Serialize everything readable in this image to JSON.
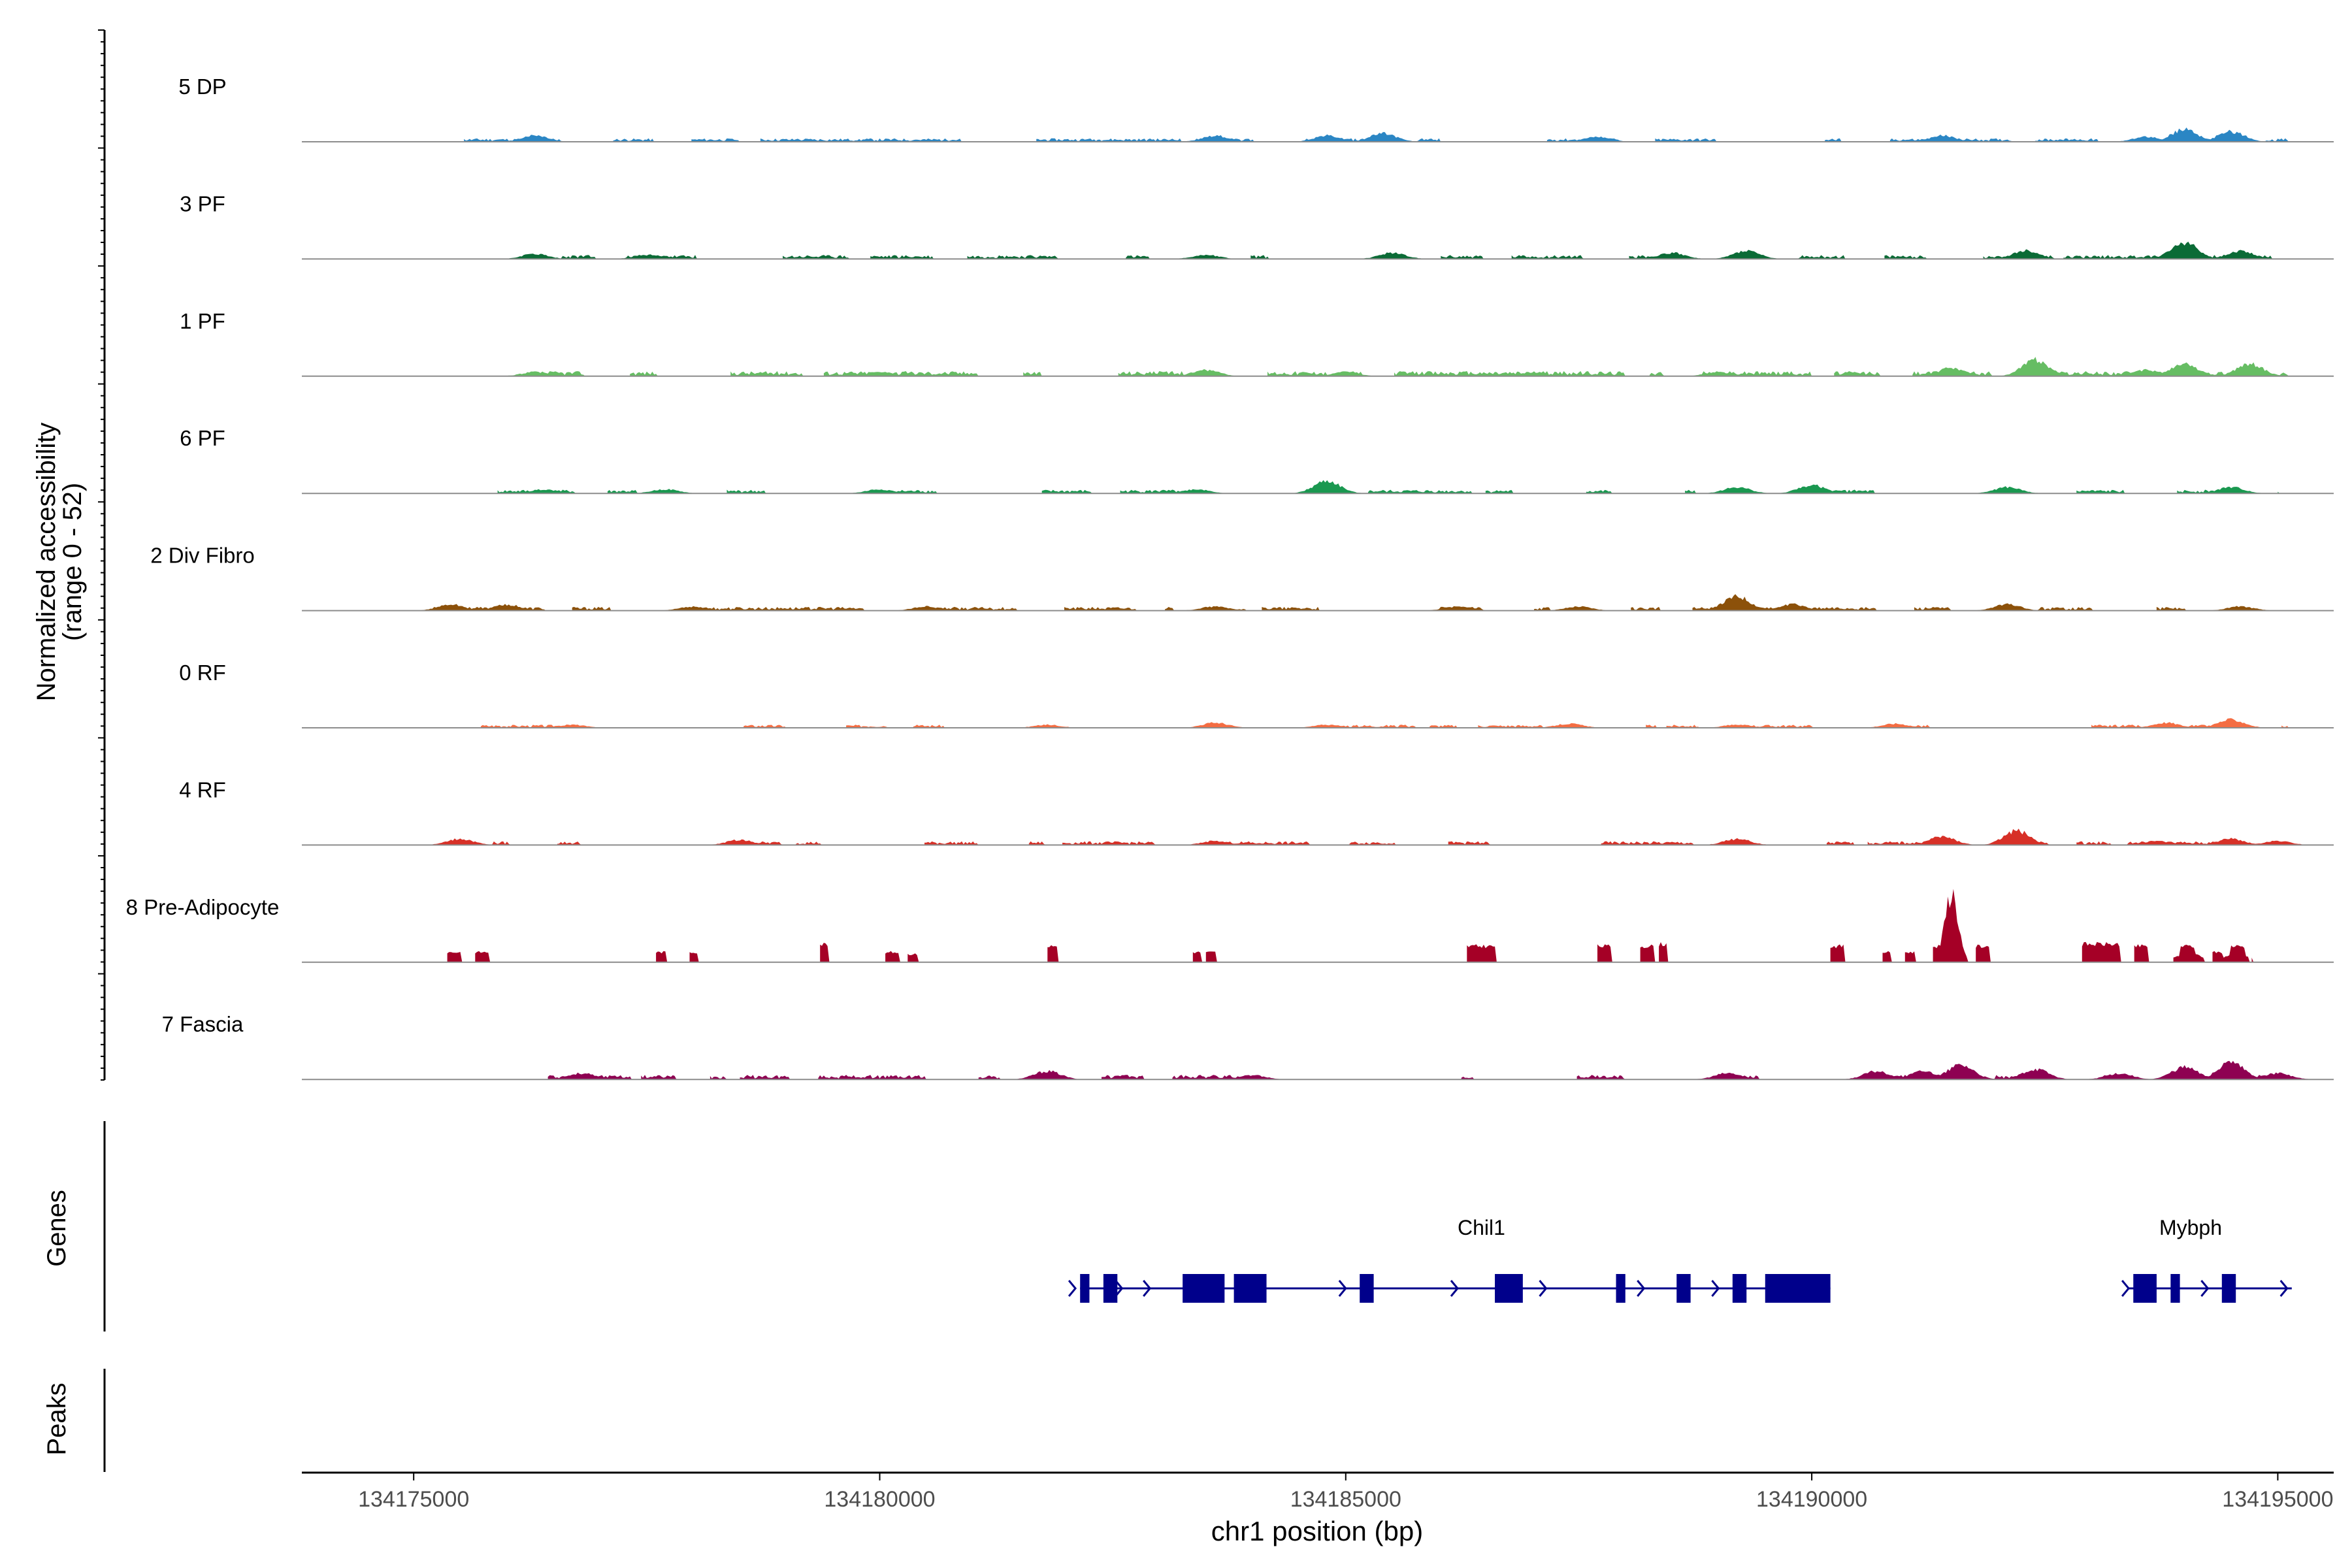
{
  "chart_data": {
    "type": "area",
    "region": "chr1",
    "x_label": "chr1 position (bp)",
    "xlim": [
      134173800,
      134195600
    ],
    "x_ticks": [
      134175000,
      134180000,
      134185000,
      134190000,
      134195000
    ],
    "x_tick_labels": [
      "134175000",
      "134180000",
      "134185000",
      "134190000",
      "134195000"
    ],
    "coverage_axis_label": "Normalized accessibility",
    "coverage_axis_range": "(range 0 - 52)",
    "ylim": [
      0,
      52
    ],
    "genes_label": "Genes",
    "peaks_label": "Peaks",
    "tracks": [
      {
        "name": "5 DP",
        "color": "#2b86c4",
        "range": [
          134175300,
          134195100
        ],
        "base": 1.2,
        "seed": 11,
        "peaks": [
          [
            134176300,
            3
          ],
          [
            134183600,
            3
          ],
          [
            134184800,
            3
          ],
          [
            134185400,
            4
          ],
          [
            134187700,
            2.5
          ],
          [
            134191400,
            3
          ],
          [
            134193600,
            2.5
          ],
          [
            134194000,
            6
          ],
          [
            134194500,
            5
          ]
        ]
      },
      {
        "name": "3 PF",
        "color": "#0b6b36",
        "range": [
          134175700,
          134195000
        ],
        "base": 1.4,
        "seed": 23,
        "peaks": [
          [
            134176300,
            2.5
          ],
          [
            134177500,
            2
          ],
          [
            134183500,
            2
          ],
          [
            134185500,
            3
          ],
          [
            134188500,
            3
          ],
          [
            134189300,
            4
          ],
          [
            134192300,
            4
          ],
          [
            134194000,
            8
          ],
          [
            134194600,
            4
          ]
        ]
      },
      {
        "name": "1 PF",
        "color": "#66bd63",
        "range": [
          134175200,
          134195100
        ],
        "base": 1.8,
        "seed": 37,
        "peaks": [
          [
            134176300,
            2
          ],
          [
            134180000,
            2
          ],
          [
            134183500,
            3
          ],
          [
            134185000,
            2
          ],
          [
            134187000,
            2
          ],
          [
            134189000,
            2
          ],
          [
            134191500,
            4
          ],
          [
            134192400,
            8
          ],
          [
            134193600,
            3
          ],
          [
            134194000,
            6
          ],
          [
            134194700,
            6
          ]
        ]
      },
      {
        "name": "6 PF",
        "color": "#1a9850",
        "range": [
          134175200,
          134195000
        ],
        "base": 1.3,
        "seed": 41,
        "peaks": [
          [
            134176400,
            2
          ],
          [
            134177700,
            2
          ],
          [
            134180000,
            2
          ],
          [
            134183400,
            2
          ],
          [
            134184800,
            6
          ],
          [
            134189200,
            3
          ],
          [
            134190000,
            4
          ],
          [
            134192100,
            3
          ],
          [
            134194500,
            3
          ]
        ]
      },
      {
        "name": "2 Div Fibro",
        "color": "#8c510a",
        "range": [
          134175200,
          134194800
        ],
        "base": 1.3,
        "seed": 53,
        "peaks": [
          [
            134175400,
            3
          ],
          [
            134176000,
            3
          ],
          [
            134178000,
            2
          ],
          [
            134180500,
            2
          ],
          [
            134183600,
            2
          ],
          [
            134186200,
            2
          ],
          [
            134187500,
            2
          ],
          [
            134189200,
            7
          ],
          [
            134189800,
            3
          ],
          [
            134192100,
            3
          ],
          [
            134194600,
            2
          ]
        ]
      },
      {
        "name": "0 RF",
        "color": "#f46d43",
        "range": [
          134175200,
          134195100
        ],
        "base": 1.1,
        "seed": 67,
        "peaks": [
          [
            134176700,
            1.5
          ],
          [
            134181800,
            1.5
          ],
          [
            134183600,
            2.5
          ],
          [
            134184800,
            1.5
          ],
          [
            134187400,
            2
          ],
          [
            134189200,
            1.5
          ],
          [
            134190900,
            2
          ],
          [
            134193800,
            2.5
          ],
          [
            134194500,
            4
          ]
        ]
      },
      {
        "name": "4 RF",
        "color": "#d73027",
        "range": [
          134175200,
          134195100
        ],
        "base": 1.3,
        "seed": 79,
        "peaks": [
          [
            134175500,
            3
          ],
          [
            134178500,
            2.5
          ],
          [
            134183600,
            2
          ],
          [
            134189200,
            3
          ],
          [
            134191400,
            4
          ],
          [
            134192200,
            7
          ],
          [
            134193700,
            2
          ],
          [
            134194500,
            3
          ],
          [
            134195000,
            2
          ]
        ]
      },
      {
        "name": "8 Pre-Adipocyte",
        "color": "#a50026",
        "range": [
          134175200,
          134195000
        ],
        "base": 0,
        "seed": 83,
        "blocks": [
          [
            134175350,
            134175500,
            5
          ],
          [
            134175650,
            134175800,
            5
          ],
          [
            134177600,
            134177700,
            5
          ],
          [
            134177950,
            134178050,
            5
          ],
          [
            134179350,
            134179450,
            9
          ],
          [
            134180050,
            134180200,
            5
          ],
          [
            134180300,
            134180400,
            4
          ],
          [
            134181800,
            134181900,
            8
          ],
          [
            134183350,
            134183450,
            5
          ],
          [
            134183500,
            134183600,
            5
          ],
          [
            134186300,
            134186600,
            8
          ],
          [
            134187700,
            134187850,
            8
          ],
          [
            134188150,
            134188300,
            8
          ],
          [
            134188350,
            134188450,
            9
          ],
          [
            134190200,
            134190350,
            8
          ],
          [
            134190750,
            134190850,
            5
          ],
          [
            134191000,
            134191100,
            5
          ],
          [
            134191300,
            134191500,
            8
          ],
          [
            134191750,
            134191900,
            8
          ],
          [
            134192900,
            134193300,
            9
          ],
          [
            134193450,
            134193600,
            8
          ],
          [
            134193950,
            134194100,
            8
          ],
          [
            134194300,
            134194400,
            5
          ],
          [
            134194500,
            134194650,
            8
          ]
        ],
        "peaks": [
          [
            134191500,
            34
          ],
          [
            134193150,
            4
          ],
          [
            134194050,
            4
          ],
          [
            134194550,
            4
          ]
        ]
      },
      {
        "name": "7 Fascia",
        "color": "#8e0152",
        "range": [
          134175600,
          134195100
        ],
        "base": 1.6,
        "seed": 97,
        "peaks": [
          [
            134176800,
            3
          ],
          [
            134181800,
            4
          ],
          [
            134184000,
            2
          ],
          [
            134189100,
            3
          ],
          [
            134190700,
            4
          ],
          [
            134191200,
            4
          ],
          [
            134191600,
            7
          ],
          [
            134192400,
            5
          ],
          [
            134193300,
            3
          ],
          [
            134194000,
            6
          ],
          [
            134194500,
            8
          ],
          [
            134195000,
            3
          ]
        ]
      }
    ],
    "genes": [
      {
        "name": "Chil1",
        "start": 134182150,
        "end": 134190200,
        "exons": [
          [
            134182150,
            134182250
          ],
          [
            134182400,
            134182550
          ],
          [
            134183250,
            134183700
          ],
          [
            134183800,
            134184150
          ],
          [
            134185150,
            134185300
          ],
          [
            134186600,
            134186900
          ],
          [
            134187900,
            134188000
          ],
          [
            134188550,
            134188700
          ],
          [
            134189150,
            134189300
          ],
          [
            134189500,
            134190200
          ]
        ],
        "arrows": [
          134182100,
          134182600,
          134182900,
          134185000,
          134186200,
          134187150,
          134188200,
          134189000
        ]
      },
      {
        "name": "Mybph",
        "start": 134193400,
        "end": 134195150,
        "exons": [
          [
            134193450,
            134193700
          ],
          [
            134193850,
            134193950
          ],
          [
            134194400,
            134194550
          ]
        ],
        "arrows": [
          134193400,
          134194250,
          134195100
        ]
      }
    ],
    "peaks_track": []
  }
}
